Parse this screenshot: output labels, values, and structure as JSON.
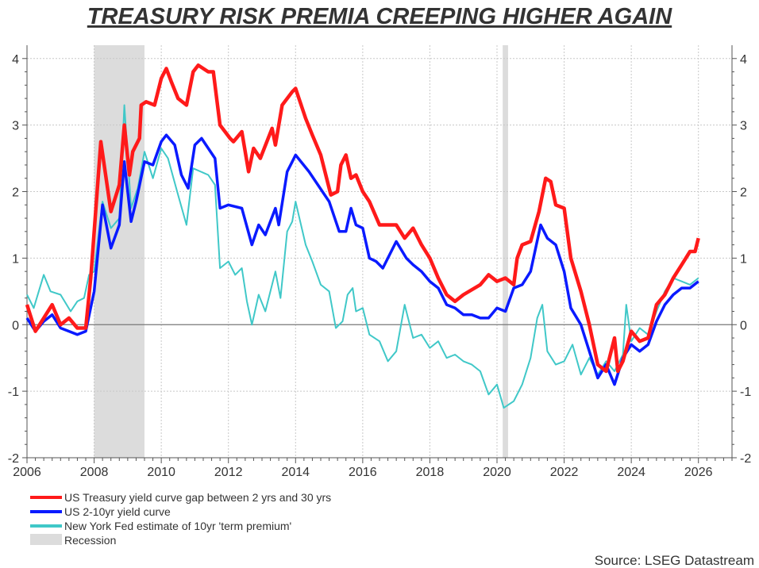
{
  "chart_data": {
    "type": "line",
    "title": "TREASURY RISK PREMIA CREEPING HIGHER AGAIN",
    "source": "Source: LSEG Datastream",
    "xlim": [
      2006,
      2027
    ],
    "ylim": [
      -2,
      4.2
    ],
    "x_ticks": [
      "2006",
      "2008",
      "2010",
      "2012",
      "2014",
      "2016",
      "2018",
      "2020",
      "2022",
      "2024",
      "2026"
    ],
    "y_ticks": [
      "-2",
      "-1",
      "0",
      "1",
      "2",
      "3",
      "4"
    ],
    "grid": true,
    "legend_placement": "bottom-left",
    "recessions": [
      {
        "start": 2008.0,
        "end": 2009.5
      },
      {
        "start": 2020.17,
        "end": 2020.33
      }
    ],
    "recession_label": "Recession",
    "recession_color": "#dcdcdc",
    "series": [
      {
        "name": "US Treasury yield curve gap between 2 yrs and 30 yrs",
        "color": "#ff1a1a",
        "x": [
          2006.0,
          2006.25,
          2006.5,
          2006.75,
          2007.0,
          2007.25,
          2007.5,
          2007.75,
          2007.9,
          2008.2,
          2008.5,
          2008.75,
          2008.9,
          2009.05,
          2009.15,
          2009.35,
          2009.4,
          2009.55,
          2009.8,
          2010.0,
          2010.15,
          2010.3,
          2010.5,
          2010.75,
          2010.95,
          2011.1,
          2011.4,
          2011.55,
          2011.75,
          2012.05,
          2012.15,
          2012.4,
          2012.6,
          2012.75,
          2012.95,
          2013.3,
          2013.4,
          2013.6,
          2013.9,
          2014.0,
          2014.3,
          2014.5,
          2014.75,
          2015.05,
          2015.25,
          2015.35,
          2015.5,
          2015.65,
          2015.8,
          2016.0,
          2016.2,
          2016.5,
          2017.0,
          2017.25,
          2017.5,
          2017.75,
          2018.0,
          2018.25,
          2018.5,
          2018.75,
          2019.0,
          2019.5,
          2019.75,
          2020.0,
          2020.25,
          2020.5,
          2020.6,
          2020.75,
          2021.0,
          2021.25,
          2021.45,
          2021.6,
          2021.75,
          2022.0,
          2022.2,
          2022.5,
          2022.75,
          2023.0,
          2023.25,
          2023.5,
          2023.6,
          2023.75,
          2024.0,
          2024.25,
          2024.5,
          2024.75,
          2025.0,
          2025.25,
          2025.5,
          2025.75,
          2025.9,
          2026.0
        ],
        "values": [
          0.3,
          -0.1,
          0.1,
          0.3,
          0.0,
          0.1,
          -0.05,
          -0.05,
          0.7,
          2.75,
          1.7,
          2.1,
          3.0,
          2.25,
          2.6,
          2.8,
          3.3,
          3.35,
          3.3,
          3.7,
          3.85,
          3.65,
          3.4,
          3.3,
          3.8,
          3.9,
          3.8,
          3.8,
          3.0,
          2.8,
          2.75,
          2.9,
          2.3,
          2.65,
          2.5,
          2.95,
          2.7,
          3.3,
          3.5,
          3.55,
          3.1,
          2.85,
          2.55,
          1.95,
          2.0,
          2.4,
          2.55,
          2.2,
          2.25,
          2.0,
          1.85,
          1.5,
          1.5,
          1.3,
          1.45,
          1.2,
          1.0,
          0.7,
          0.45,
          0.35,
          0.45,
          0.6,
          0.75,
          0.65,
          0.7,
          0.6,
          1.0,
          1.2,
          1.25,
          1.7,
          2.2,
          2.15,
          1.8,
          1.75,
          1.0,
          0.5,
          0.0,
          -0.6,
          -0.7,
          -0.2,
          -0.7,
          -0.55,
          -0.1,
          -0.25,
          -0.2,
          0.3,
          0.45,
          0.7,
          0.9,
          1.1,
          1.1,
          1.3
        ]
      },
      {
        "name": "US 2-10yr yield curve",
        "color": "#0a1aff",
        "x": [
          2006.0,
          2006.25,
          2006.5,
          2006.75,
          2007.0,
          2007.25,
          2007.5,
          2007.75,
          2008.0,
          2008.25,
          2008.5,
          2008.75,
          2008.9,
          2009.1,
          2009.25,
          2009.5,
          2009.75,
          2010.0,
          2010.15,
          2010.4,
          2010.6,
          2010.8,
          2011.0,
          2011.2,
          2011.6,
          2011.75,
          2012.0,
          2012.4,
          2012.7,
          2012.9,
          2013.1,
          2013.4,
          2013.5,
          2013.75,
          2013.9,
          2014.0,
          2014.4,
          2014.8,
          2015.0,
          2015.3,
          2015.5,
          2015.65,
          2015.8,
          2016.0,
          2016.2,
          2016.4,
          2016.6,
          2017.0,
          2017.3,
          2017.5,
          2017.75,
          2018.0,
          2018.25,
          2018.5,
          2018.75,
          2019.0,
          2019.25,
          2019.5,
          2019.75,
          2020.0,
          2020.25,
          2020.5,
          2020.75,
          2021.0,
          2021.3,
          2021.5,
          2021.75,
          2022.0,
          2022.2,
          2022.5,
          2022.75,
          2023.0,
          2023.25,
          2023.5,
          2023.75,
          2024.0,
          2024.25,
          2024.5,
          2024.75,
          2025.0,
          2025.25,
          2025.5,
          2025.75,
          2026.0
        ],
        "values": [
          0.1,
          -0.1,
          0.05,
          0.15,
          -0.05,
          -0.1,
          -0.15,
          -0.1,
          0.5,
          1.8,
          1.15,
          1.5,
          2.45,
          1.55,
          1.85,
          2.45,
          2.4,
          2.75,
          2.85,
          2.7,
          2.25,
          2.05,
          2.7,
          2.8,
          2.5,
          1.75,
          1.8,
          1.75,
          1.2,
          1.5,
          1.35,
          1.75,
          1.5,
          2.3,
          2.45,
          2.55,
          2.3,
          2.0,
          1.85,
          1.4,
          1.4,
          1.75,
          1.5,
          1.45,
          1.0,
          0.95,
          0.85,
          1.25,
          1.0,
          0.9,
          0.8,
          0.65,
          0.55,
          0.3,
          0.25,
          0.15,
          0.15,
          0.1,
          0.1,
          0.25,
          0.2,
          0.55,
          0.6,
          0.8,
          1.5,
          1.3,
          1.2,
          0.8,
          0.25,
          0.0,
          -0.4,
          -0.8,
          -0.6,
          -0.9,
          -0.5,
          -0.3,
          -0.4,
          -0.3,
          0.05,
          0.3,
          0.45,
          0.55,
          0.55,
          0.65
        ]
      },
      {
        "name": "New York Fed estimate of 10yr 'term premium'",
        "color": "#40c8c8",
        "x": [
          2006.0,
          2006.2,
          2006.5,
          2006.7,
          2007.0,
          2007.3,
          2007.5,
          2007.7,
          2007.85,
          2008.0,
          2008.25,
          2008.5,
          2008.75,
          2008.9,
          2009.1,
          2009.3,
          2009.5,
          2009.75,
          2010.0,
          2010.2,
          2010.5,
          2010.75,
          2010.95,
          2011.4,
          2011.6,
          2011.75,
          2012.0,
          2012.2,
          2012.4,
          2012.55,
          2012.7,
          2012.9,
          2013.1,
          2013.4,
          2013.55,
          2013.75,
          2013.9,
          2014.0,
          2014.3,
          2014.5,
          2014.75,
          2015.0,
          2015.2,
          2015.4,
          2015.55,
          2015.7,
          2015.8,
          2016.0,
          2016.2,
          2016.5,
          2016.75,
          2017.0,
          2017.25,
          2017.5,
          2017.75,
          2018.0,
          2018.25,
          2018.5,
          2018.75,
          2019.0,
          2019.25,
          2019.5,
          2019.75,
          2020.0,
          2020.2,
          2020.5,
          2020.75,
          2021.0,
          2021.2,
          2021.35,
          2021.5,
          2021.75,
          2022.0,
          2022.25,
          2022.5,
          2022.75,
          2023.0,
          2023.25,
          2023.5,
          2023.75,
          2023.85,
          2024.0,
          2024.25,
          2024.5,
          2024.75,
          2025.0,
          2025.25,
          2025.5,
          2025.75,
          2026.0
        ],
        "values": [
          0.45,
          0.25,
          0.75,
          0.5,
          0.45,
          0.2,
          0.35,
          0.4,
          0.75,
          0.8,
          1.85,
          1.45,
          1.6,
          3.3,
          1.75,
          2.05,
          2.6,
          2.2,
          2.65,
          2.5,
          1.95,
          1.5,
          2.35,
          2.25,
          2.1,
          0.85,
          0.95,
          0.75,
          0.85,
          0.35,
          0.0,
          0.45,
          0.2,
          0.8,
          0.4,
          1.4,
          1.55,
          1.85,
          1.2,
          0.95,
          0.6,
          0.5,
          -0.05,
          0.05,
          0.45,
          0.55,
          0.2,
          0.25,
          -0.15,
          -0.25,
          -0.55,
          -0.4,
          0.3,
          -0.2,
          -0.15,
          -0.35,
          -0.25,
          -0.5,
          -0.45,
          -0.55,
          -0.6,
          -0.7,
          -1.05,
          -0.9,
          -1.25,
          -1.15,
          -0.9,
          -0.5,
          0.1,
          0.3,
          -0.4,
          -0.6,
          -0.55,
          -0.3,
          -0.75,
          -0.5,
          -0.75,
          -0.55,
          -0.7,
          -0.45,
          0.3,
          -0.25,
          -0.05,
          -0.15,
          0.2,
          0.5,
          0.7,
          0.65,
          0.6,
          0.7
        ]
      }
    ]
  }
}
